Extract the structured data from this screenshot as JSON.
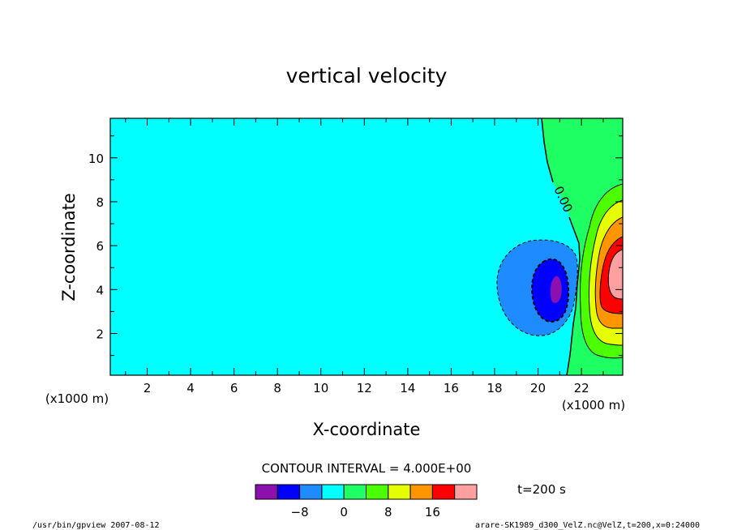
{
  "chart_data": {
    "type": "heatmap",
    "title": "vertical velocity",
    "xlabel": "X-coordinate",
    "ylabel": "Z-coordinate",
    "x_unit_note": "(x1000 m)",
    "y_unit_note": "(x1000 m)",
    "xlim": [
      0.3,
      23.9
    ],
    "ylim": [
      0.1,
      11.8
    ],
    "x_ticks": [
      2,
      4,
      6,
      8,
      10,
      12,
      14,
      16,
      18,
      20,
      22
    ],
    "y_ticks": [
      2,
      4,
      6,
      8,
      10
    ],
    "contour_interval_text": "CONTOUR INTERVAL = 4.000E+00",
    "contour_label": "0.00",
    "time_label": "t=200 s",
    "colorbar": {
      "colors": [
        "#8b10ad",
        "#0000ff",
        "#1e8cff",
        "#00ffff",
        "#1eff64",
        "#4bff00",
        "#e6ff00",
        "#ff9600",
        "#ff0000",
        "#ffa0a0"
      ],
      "tick_values": [
        -8,
        0,
        8,
        16
      ],
      "tick_labels": [
        "−8",
        "0",
        "8",
        "16"
      ]
    },
    "field": {
      "background_level": "(-4, 0)",
      "updraft_region": "x > ~21 km, centered near x=23.5 km, z=4.5 km, max above 16",
      "downdraft_region": "centered near x=20.8 km, z=4 km, min below -8"
    },
    "grid": false
  },
  "footer": {
    "left": "/usr/bin/gpview   2007-08-12",
    "right": "arare-SK1989_d300_VelZ.nc@VelZ,t=200,x=0:24000"
  }
}
